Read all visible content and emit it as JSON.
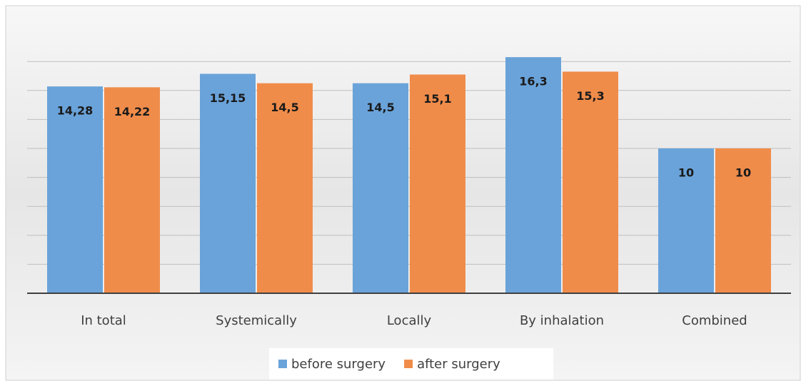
{
  "chart_data": {
    "type": "bar",
    "categories": [
      "In total",
      "Systemically",
      "Locally",
      "By inhalation",
      "Combined"
    ],
    "series": [
      {
        "name": "before surgery",
        "color": "#6aa3d9",
        "values": [
          14.28,
          15.15,
          14.5,
          16.3,
          10
        ],
        "value_labels": [
          "14,28",
          "15,15",
          "14,5",
          "16,3",
          "10"
        ]
      },
      {
        "name": "after surgery",
        "color": "#f08c4a",
        "values": [
          14.22,
          14.5,
          15.1,
          15.3,
          10
        ],
        "value_labels": [
          "14,22",
          "14,5",
          "15,1",
          "15,3",
          "10"
        ]
      }
    ],
    "ylim": [
      0,
      18
    ],
    "yticks": [
      0,
      2,
      4,
      6,
      8,
      10,
      12,
      14,
      16
    ],
    "grid": true,
    "legend": "bottom"
  }
}
